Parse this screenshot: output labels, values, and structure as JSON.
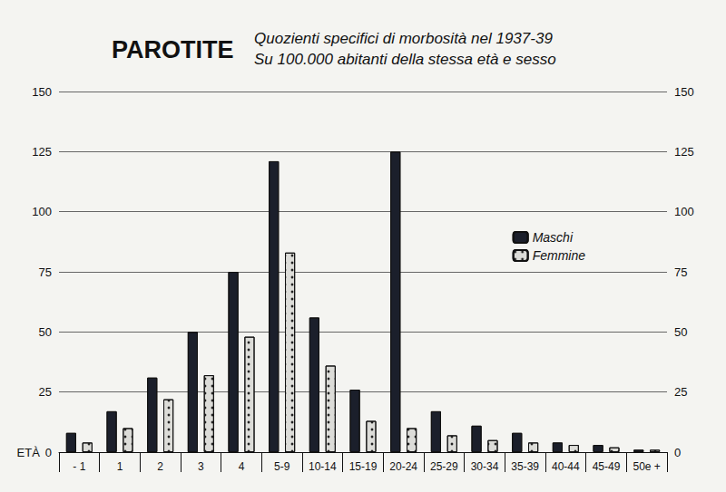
{
  "chart_data": {
    "type": "bar",
    "title": "PAROTITE",
    "subtitle": "Quozienti specifici di morbosità nel 1937-39\nSu 100.000 abitanti della stessa età e sesso",
    "x_label": "ETÀ",
    "categories": [
      "- 1",
      "1",
      "2",
      "3",
      "4",
      "5-9",
      "10-14",
      "15-19",
      "20-24",
      "25-29",
      "30-34",
      "35-39",
      "40-44",
      "45-49",
      "50e +"
    ],
    "series": [
      {
        "name": "Maschi",
        "color": "#1b1f2b",
        "values": [
          8,
          17,
          31,
          50,
          75,
          121,
          56,
          26,
          125,
          17,
          11,
          8,
          4,
          3,
          1
        ]
      },
      {
        "name": "Femmine",
        "color": "#dcdcd8",
        "values": [
          4,
          10,
          22,
          32,
          48,
          83,
          36,
          13,
          10,
          7,
          5,
          4,
          3,
          2,
          1
        ]
      }
    ],
    "ylim": [
      0,
      150
    ],
    "yticks": [
      0,
      25,
      50,
      75,
      100,
      125,
      150
    ],
    "grid": true,
    "legend": "right"
  }
}
